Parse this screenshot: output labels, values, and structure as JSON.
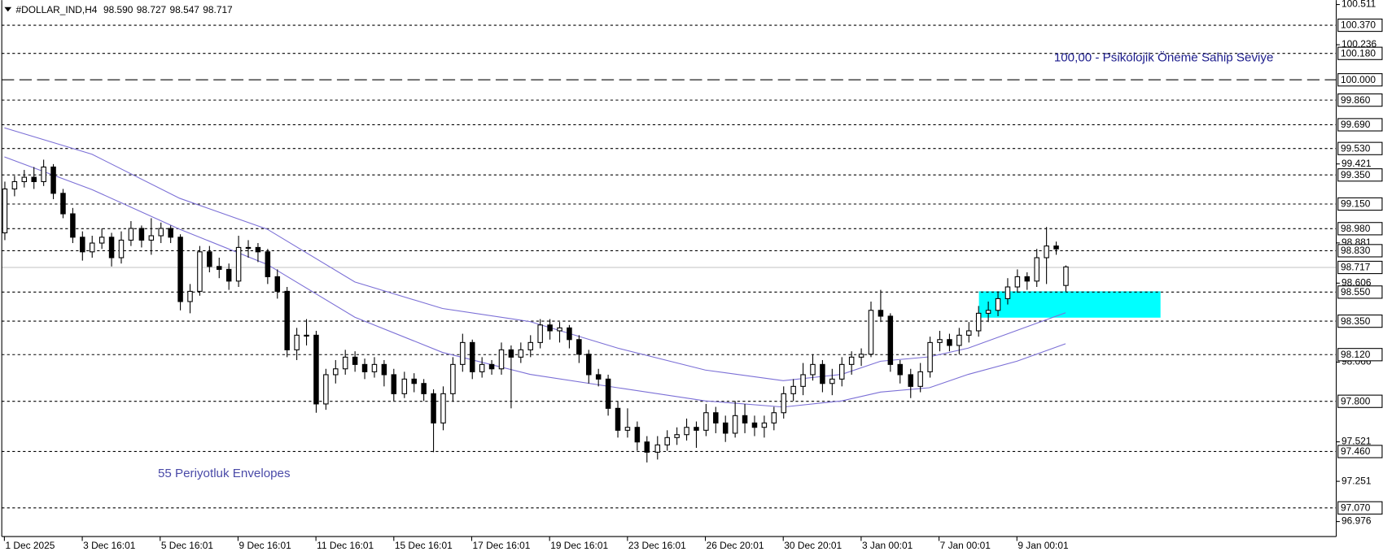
{
  "chart_data": {
    "type": "candlestick",
    "title": "#DOLLAR_IND,H4",
    "ohlc_labels": [
      "98.590",
      "98.727",
      "98.547",
      "98.717"
    ],
    "annotations": [
      "100,00 -  Psikolojik Öneme Sahip Seviye",
      "55 Periyotluk Envelopes"
    ],
    "bull_color": "#ffffff",
    "bear_color": "#000000",
    "ylim": [
      96.976,
      100.511
    ],
    "xlim": [
      -0.45,
      136.8
    ],
    "yticks": [
      {
        "value": 100.511,
        "label": "100.511"
      },
      {
        "value": 100.236,
        "label": "100.236"
      },
      {
        "value": 99.421,
        "label": "99.421"
      },
      {
        "value": 98.881,
        "label": "98.881"
      },
      {
        "value": 98.606,
        "label": "98.606"
      },
      {
        "value": 98.066,
        "label": "98.066"
      },
      {
        "value": 97.521,
        "label": "97.521"
      },
      {
        "value": 97.251,
        "label": "97.251"
      },
      {
        "value": 96.976,
        "label": "96.976"
      }
    ],
    "xticks": [
      {
        "value": 0,
        "label": "1 Dec 2025"
      },
      {
        "value": 8,
        "label": "3 Dec 16:01"
      },
      {
        "value": 16,
        "label": "5 Dec 16:01"
      },
      {
        "value": 24,
        "label": "9 Dec 16:01"
      },
      {
        "value": 32,
        "label": "11 Dec 16:01"
      },
      {
        "value": 40,
        "label": "15 Dec 16:01"
      },
      {
        "value": 48,
        "label": "17 Dec 16:01"
      },
      {
        "value": 56,
        "label": "19 Dec 16:01"
      },
      {
        "value": 64,
        "label": "23 Dec 16:01"
      },
      {
        "value": 72,
        "label": "26 Dec 20:01"
      },
      {
        "value": 80,
        "label": "30 Dec 20:01"
      },
      {
        "value": 88,
        "label": "3 Jan 00:01"
      },
      {
        "value": 96,
        "label": "7 Jan 00:01"
      },
      {
        "value": 104,
        "label": "9 Jan 00:01"
      }
    ],
    "levels": [
      {
        "value": 100.37,
        "label": "100.370",
        "dash": "short"
      },
      {
        "value": 100.18,
        "label": "100.180",
        "dash": "short"
      },
      {
        "value": 100.0,
        "label": "100.000",
        "dash": "long"
      },
      {
        "value": 99.86,
        "label": "99.860",
        "dash": "short"
      },
      {
        "value": 99.69,
        "label": "99.690",
        "dash": "short"
      },
      {
        "value": 99.53,
        "label": "99.530",
        "dash": "short"
      },
      {
        "value": 99.35,
        "label": "99.350",
        "dash": "short"
      },
      {
        "value": 99.15,
        "label": "99.150",
        "dash": "short"
      },
      {
        "value": 98.98,
        "label": "98.980",
        "dash": "short"
      },
      {
        "value": 98.83,
        "label": "98.830",
        "dash": "short"
      },
      {
        "value": 98.55,
        "label": "98.550",
        "dash": "short"
      },
      {
        "value": 98.35,
        "label": "98.350",
        "dash": "short"
      },
      {
        "value": 98.12,
        "label": "98.120",
        "dash": "short"
      },
      {
        "value": 97.8,
        "label": "97.800",
        "dash": "short"
      },
      {
        "value": 97.46,
        "label": "97.460",
        "dash": "short"
      },
      {
        "value": 97.07,
        "label": "97.070",
        "dash": "short"
      }
    ],
    "current_price": 98.717,
    "zone": {
      "ylim": [
        98.37,
        98.55
      ],
      "xlim": [
        100.1,
        118.75
      ],
      "color": "#00ffff"
    },
    "lines_x": [
      0,
      9,
      18,
      27,
      36,
      45,
      54,
      63,
      72,
      80,
      86,
      90,
      95,
      99,
      104,
      109
    ],
    "lines": [
      {
        "color": "#7b6fd6",
        "values": [
          99.668,
          99.487,
          99.186,
          98.975,
          98.614,
          98.433,
          98.343,
          98.162,
          98.012,
          97.939,
          97.982,
          98.072,
          98.102,
          98.162,
          98.283,
          98.403
        ]
      },
      {
        "color": "#7b6fd6",
        "values": [
          99.469,
          99.246,
          98.975,
          98.734,
          98.373,
          98.132,
          97.982,
          97.891,
          97.801,
          97.759,
          97.801,
          97.861,
          97.891,
          97.982,
          98.072,
          98.192
        ]
      }
    ],
    "candles": [
      [
        98.95,
        99.3,
        98.9,
        99.25
      ],
      [
        99.25,
        99.34,
        99.2,
        99.3
      ],
      [
        99.3,
        99.38,
        99.26,
        99.33
      ],
      [
        99.33,
        99.4,
        99.25,
        99.3
      ],
      [
        99.3,
        99.45,
        99.27,
        99.4
      ],
      [
        99.4,
        99.42,
        99.18,
        99.22
      ],
      [
        99.22,
        99.25,
        99.05,
        99.08
      ],
      [
        99.08,
        99.12,
        98.88,
        98.92
      ],
      [
        98.92,
        98.96,
        98.76,
        98.82
      ],
      [
        98.82,
        98.93,
        98.78,
        98.88
      ],
      [
        98.88,
        98.98,
        98.84,
        98.92
      ],
      [
        98.92,
        98.95,
        98.72,
        98.78
      ],
      [
        98.78,
        98.96,
        98.74,
        98.9
      ],
      [
        98.9,
        99.03,
        98.86,
        98.98
      ],
      [
        98.98,
        99.0,
        98.85,
        98.9
      ],
      [
        98.9,
        99.05,
        98.8,
        98.93
      ],
      [
        98.93,
        99.02,
        98.88,
        98.98
      ],
      [
        98.98,
        99.0,
        98.88,
        98.92
      ],
      [
        98.92,
        98.94,
        98.42,
        98.48
      ],
      [
        98.48,
        98.6,
        98.4,
        98.55
      ],
      [
        98.55,
        98.86,
        98.52,
        98.82
      ],
      [
        98.82,
        98.86,
        98.68,
        98.72
      ],
      [
        98.72,
        98.78,
        98.64,
        98.7
      ],
      [
        98.7,
        98.74,
        98.56,
        98.62
      ],
      [
        98.62,
        98.93,
        98.58,
        98.85
      ],
      [
        98.85,
        98.9,
        98.78,
        98.85
      ],
      [
        98.85,
        98.88,
        98.75,
        98.82
      ],
      [
        98.82,
        98.84,
        98.6,
        98.65
      ],
      [
        98.65,
        98.7,
        98.5,
        98.55
      ],
      [
        98.55,
        98.58,
        98.1,
        98.15
      ],
      [
        98.15,
        98.3,
        98.08,
        98.25
      ],
      [
        98.25,
        98.36,
        98.18,
        98.25
      ],
      [
        98.25,
        98.28,
        97.72,
        97.78
      ],
      [
        97.78,
        98.02,
        97.74,
        97.98
      ],
      [
        97.98,
        98.08,
        97.92,
        98.02
      ],
      [
        98.02,
        98.15,
        97.98,
        98.1
      ],
      [
        98.1,
        98.14,
        98.0,
        98.05
      ],
      [
        98.05,
        98.09,
        97.95,
        98.0
      ],
      [
        98.0,
        98.1,
        97.96,
        98.05
      ],
      [
        98.05,
        98.08,
        97.9,
        97.98
      ],
      [
        97.98,
        98.02,
        97.8,
        97.85
      ],
      [
        97.85,
        98.0,
        97.82,
        97.95
      ],
      [
        97.95,
        97.99,
        97.86,
        97.92
      ],
      [
        97.92,
        97.95,
        97.8,
        97.85
      ],
      [
        97.85,
        97.88,
        97.45,
        97.65
      ],
      [
        97.65,
        97.9,
        97.6,
        97.85
      ],
      [
        97.85,
        98.1,
        97.8,
        98.05
      ],
      [
        98.05,
        98.26,
        98.0,
        98.2
      ],
      [
        98.2,
        98.22,
        97.95,
        98.0
      ],
      [
        98.0,
        98.1,
        97.96,
        98.05
      ],
      [
        98.05,
        98.08,
        97.98,
        98.02
      ],
      [
        98.02,
        98.2,
        97.98,
        98.15
      ],
      [
        98.15,
        98.18,
        97.75,
        98.1
      ],
      [
        98.1,
        98.2,
        98.06,
        98.15
      ],
      [
        98.15,
        98.25,
        98.1,
        98.2
      ],
      [
        98.2,
        98.36,
        98.16,
        98.32
      ],
      [
        98.32,
        98.36,
        98.22,
        98.28
      ],
      [
        98.28,
        98.34,
        98.2,
        98.3
      ],
      [
        98.3,
        98.32,
        98.16,
        98.22
      ],
      [
        98.22,
        98.25,
        98.06,
        98.12
      ],
      [
        98.12,
        98.15,
        97.92,
        97.98
      ],
      [
        97.98,
        98.02,
        97.9,
        97.95
      ],
      [
        97.95,
        97.98,
        97.7,
        97.75
      ],
      [
        97.75,
        97.8,
        97.55,
        97.6
      ],
      [
        97.6,
        97.75,
        97.55,
        97.62
      ],
      [
        97.62,
        97.66,
        97.46,
        97.52
      ],
      [
        97.52,
        97.56,
        97.38,
        97.45
      ],
      [
        97.45,
        97.56,
        97.4,
        97.5
      ],
      [
        97.5,
        97.6,
        97.46,
        97.55
      ],
      [
        97.55,
        97.62,
        97.5,
        97.57
      ],
      [
        97.57,
        97.68,
        97.53,
        97.62
      ],
      [
        97.62,
        97.66,
        97.48,
        97.6
      ],
      [
        97.6,
        97.78,
        97.56,
        97.72
      ],
      [
        97.72,
        97.76,
        97.58,
        97.65
      ],
      [
        97.65,
        97.7,
        97.52,
        97.58
      ],
      [
        97.58,
        97.8,
        97.55,
        97.7
      ],
      [
        97.7,
        97.78,
        97.58,
        97.65
      ],
      [
        97.65,
        97.7,
        97.56,
        97.62
      ],
      [
        97.62,
        97.7,
        97.55,
        97.65
      ],
      [
        97.65,
        97.76,
        97.6,
        97.72
      ],
      [
        97.72,
        97.9,
        97.68,
        97.85
      ],
      [
        97.85,
        97.95,
        97.8,
        97.9
      ],
      [
        97.9,
        98.06,
        97.84,
        97.98
      ],
      [
        97.98,
        98.12,
        97.94,
        98.05
      ],
      [
        98.05,
        98.08,
        97.86,
        97.92
      ],
      [
        97.92,
        98.02,
        97.84,
        97.95
      ],
      [
        97.95,
        98.1,
        97.9,
        98.05
      ],
      [
        98.05,
        98.14,
        97.98,
        98.1
      ],
      [
        98.1,
        98.16,
        98.04,
        98.12
      ],
      [
        98.12,
        98.48,
        98.1,
        98.42
      ],
      [
        98.42,
        98.56,
        98.34,
        98.38
      ],
      [
        98.38,
        98.4,
        98.0,
        98.05
      ],
      [
        98.05,
        98.08,
        97.92,
        97.98
      ],
      [
        97.98,
        98.02,
        97.82,
        97.9
      ],
      [
        97.9,
        98.06,
        97.86,
        98.0
      ],
      [
        98.0,
        98.24,
        97.96,
        98.2
      ],
      [
        98.2,
        98.28,
        98.14,
        98.22
      ],
      [
        98.22,
        98.26,
        98.14,
        98.18
      ],
      [
        98.18,
        98.3,
        98.12,
        98.25
      ],
      [
        98.25,
        98.34,
        98.2,
        98.28
      ],
      [
        98.28,
        98.45,
        98.24,
        98.4
      ],
      [
        98.4,
        98.48,
        98.34,
        98.42
      ],
      [
        98.42,
        98.55,
        98.38,
        98.5
      ],
      [
        98.5,
        98.64,
        98.46,
        98.58
      ],
      [
        98.58,
        98.7,
        98.54,
        98.65
      ],
      [
        98.65,
        98.68,
        98.56,
        98.62
      ],
      [
        98.62,
        98.84,
        98.58,
        98.78
      ],
      [
        98.78,
        98.99,
        98.6,
        98.86
      ],
      [
        98.86,
        98.89,
        98.8,
        98.84
      ],
      [
        98.59,
        98.727,
        98.547,
        98.717
      ]
    ]
  }
}
